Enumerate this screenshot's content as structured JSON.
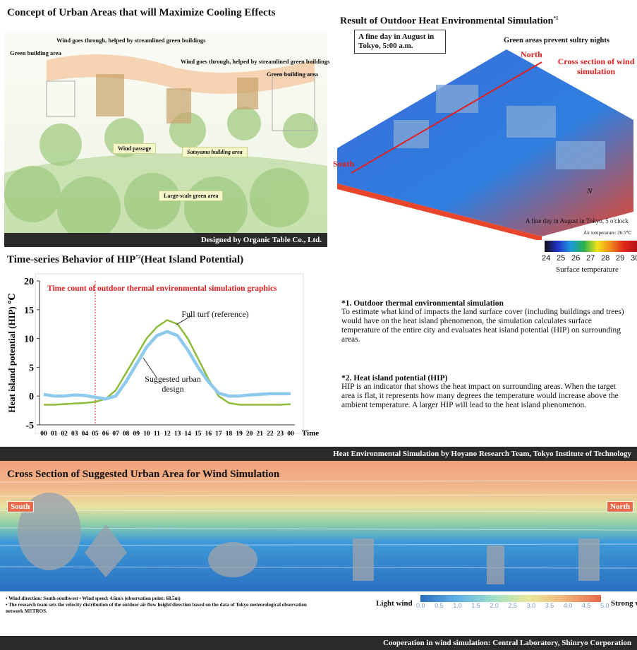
{
  "concept": {
    "title": "Concept of Urban Areas that will Maximize Cooling Effects",
    "labels": [
      "Wind goes through, helped by streamlined green buildings",
      "Green building area",
      "Wind goes through, helped by streamlined green buildings",
      "Green building area"
    ],
    "areas": [
      "Wind passage",
      "Satoyama building area",
      "Large-scale green area"
    ],
    "credit": "Designed by Organic Table Co., Ltd."
  },
  "simulation": {
    "title": "Result of Outdoor Heat Environmental Simulation",
    "note_mark": "*1",
    "caption": "A fine day in August in Tokyo, 5:00 a.m.",
    "green_label": "Green areas prevent sultry nights",
    "north": "North",
    "cross_section": "Cross section of wind simulation",
    "south": "South",
    "compass": "N",
    "caption2": "A fine day in August in Tokyo, 5 o'clock",
    "air_temperature": "Air temperature: 26.5℃",
    "scale_ticks": [
      24,
      25,
      26,
      27,
      28,
      29,
      30
    ],
    "scale_label": "Surface temperature"
  },
  "chart_data": {
    "type": "line",
    "title": "Time-series Behavior of HIP",
    "title_note": "*2",
    "subtitle": "(Heat Island Potential)",
    "x_label": "Time",
    "y_label": "Heat island potential (HIP) ℃",
    "categories": [
      "00",
      "01",
      "02",
      "03",
      "04",
      "05",
      "06",
      "07",
      "08",
      "09",
      "10",
      "11",
      "12",
      "13",
      "14",
      "15",
      "16",
      "17",
      "18",
      "19",
      "20",
      "21",
      "22",
      "23",
      "00"
    ],
    "series": [
      {
        "name": "Full turf (reference)",
        "color": "#8dbb3a",
        "values": [
          -1.5,
          -1.5,
          -1.4,
          -1.3,
          -1.2,
          -1.0,
          -0.5,
          1,
          4,
          7,
          10,
          12,
          13.2,
          12.5,
          10,
          6.5,
          3,
          0,
          -1.2,
          -1.5,
          -1.5,
          -1.5,
          -1.5,
          -1.5,
          -1.4
        ]
      },
      {
        "name": "Suggested urban design",
        "color": "#8ec9ee",
        "values": [
          0.3,
          0,
          0,
          0.2,
          0.1,
          -0.2,
          -0.5,
          0,
          2.5,
          5.5,
          8.5,
          10.5,
          11.2,
          10.5,
          8,
          5,
          2.5,
          0.5,
          0,
          0,
          0.2,
          0.3,
          0.4,
          0.4,
          0.4
        ]
      }
    ],
    "ylim": [
      -5,
      20
    ],
    "yticks": [
      -5,
      0,
      5,
      10,
      15,
      20
    ],
    "annotation": {
      "text": "Time count of outdoor thermal environmental simulation graphics",
      "at": "05",
      "color": "#e02020"
    }
  },
  "notes": [
    {
      "heading": "*1. Outdoor thermal environmental simulation",
      "text": "To estimate what kind of impacts the land surface cover (including buildings and trees) would have on the heat island phenomenon, the simulation calculates surface temperature of the entire city and evaluates heat island potential (HIP) on surrounding areas."
    },
    {
      "heading": "*2. Heat island potential (HIP)",
      "text": "HIP is an indicator that shows the heat impact on surrounding areas. When the target area is flat, it represents how many degrees the temperature would increase above the ambient temperature. A larger HIP will lead to the heat island phenomenon."
    }
  ],
  "banner": "Heat Environmental Simulation by Hoyano Research Team, Tokyo Institute of Technology",
  "wind": {
    "title": "Cross Section of Suggested Urban Area for Wind Simulation",
    "south": "South",
    "north": "North",
    "notes": [
      "• Wind direction: South-southwest   • Wind speed: 4.6m/s (observation point: 68.5m)",
      "• The research team sets the velocity distribution of the outdoor air flow height/direction based on the data of Tokyo meteorological observation network METROS."
    ],
    "light": "Light wind",
    "strong": "Strong wind",
    "scale": [
      "0.0",
      "0.5",
      "1.0",
      "1.5",
      "2.0",
      "2.5",
      "3.0",
      "3.5",
      "4.0",
      "4.5",
      "5.0"
    ]
  },
  "footer": "Cooperation in wind simulation: Central Laboratory, Shinryo Corporation"
}
